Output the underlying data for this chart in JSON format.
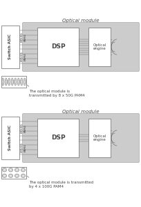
{
  "bg_color": "#ffffff",
  "diagram_bg": "#cccccc",
  "white_fill": "#ffffff",
  "box_stroke": "#aaaaaa",
  "dark_stroke": "#666666",
  "title1": "Optical module",
  "title2": "Optical module",
  "label_switch": "Switch ASIC",
  "label_dsp": "DSP",
  "label_optical": "Optical\nengine",
  "label_8x50g_top": "8X50G\nPAM4",
  "label_8x50g_bot": "8X50G\nPAM4",
  "caption1": "The optical module is\ntransmitted by 8 x 50G PAM4",
  "caption2": "The optical module is transmitted\nby 4 x 100G PAM4",
  "text_color": "#444444",
  "line_color": "#777777",
  "font_size_title": 5.0,
  "font_size_label": 4.0,
  "font_size_box_big": 6.5,
  "font_size_caption": 4.0,
  "font_size_lane": 3.2
}
